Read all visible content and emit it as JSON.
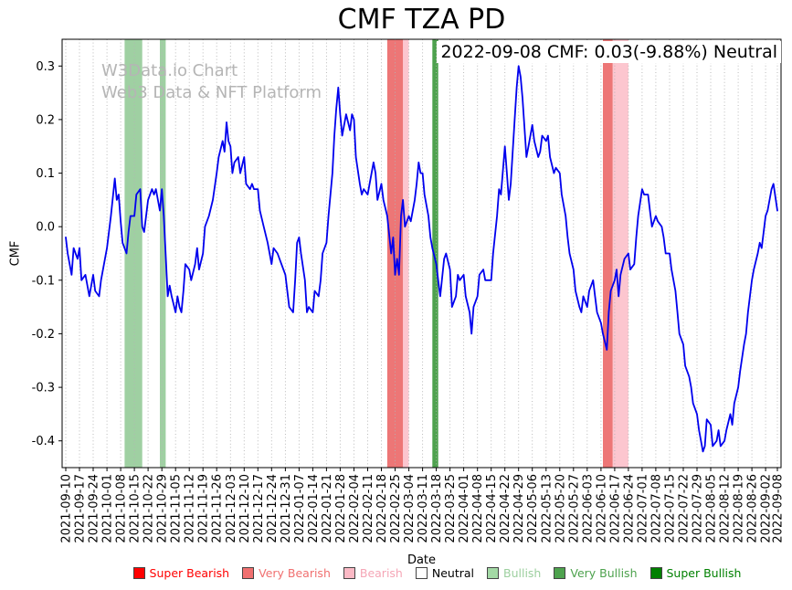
{
  "title": "CMF TZA PD",
  "annotation": "2022-09-08 CMF: 0.03(-9.88%) Neutral",
  "watermark": {
    "line1": "W3Data.io Chart",
    "line2": "Web3 Data & NFT Platform"
  },
  "axes": {
    "x_label": "Date",
    "y_label": "CMF"
  },
  "legend": [
    {
      "label": "Super Bearish",
      "color": "#ff0000",
      "text_color": "#ff0000"
    },
    {
      "label": "Very Bearish",
      "color": "#f07070",
      "text_color": "#f07070"
    },
    {
      "label": "Bearish",
      "color": "#fbb9c5",
      "text_color": "#f5a6b6"
    },
    {
      "label": "Neutral",
      "color": "#ffffff",
      "text_color": "#000000"
    },
    {
      "label": "Bullish",
      "color": "#a3d9a5",
      "text_color": "#9ccf9e"
    },
    {
      "label": "Very Bullish",
      "color": "#4ea24e",
      "text_color": "#4ea24e"
    },
    {
      "label": "Super Bullish",
      "color": "#008000",
      "text_color": "#008000"
    }
  ],
  "chart_data": {
    "type": "line",
    "title": "CMF TZA PD",
    "xlabel": "Date",
    "ylabel": "CMF",
    "ylim": [
      -0.45,
      0.35
    ],
    "y_ticks": [
      0.3,
      0.2,
      0.1,
      0.0,
      -0.1,
      -0.2,
      -0.3,
      -0.4
    ],
    "line_color": "#0000ee",
    "grid": "vertical-dotted",
    "x_start_date": "2021-09-10",
    "x_max": 363,
    "x_tick_days": [
      0,
      7,
      14,
      21,
      28,
      35,
      42,
      49,
      56,
      63,
      70,
      77,
      84,
      91,
      98,
      105,
      112,
      119,
      126,
      133,
      140,
      147,
      154,
      161,
      168,
      175,
      182,
      189,
      196,
      203,
      210,
      217,
      224,
      231,
      238,
      245,
      252,
      259,
      266,
      273,
      280,
      287,
      294,
      301,
      308,
      315,
      322,
      329,
      336,
      343,
      350,
      357,
      363
    ],
    "x_tick_labels": [
      "2021-09-10",
      "2021-09-17",
      "2021-09-24",
      "2021-10-01",
      "2021-10-08",
      "2021-10-15",
      "2021-10-22",
      "2021-10-29",
      "2021-11-05",
      "2021-11-12",
      "2021-11-19",
      "2021-11-26",
      "2021-12-03",
      "2021-12-10",
      "2021-12-17",
      "2021-12-24",
      "2021-12-31",
      "2022-01-07",
      "2022-01-14",
      "2022-01-21",
      "2022-01-28",
      "2022-02-04",
      "2022-02-11",
      "2022-02-18",
      "2022-02-25",
      "2022-03-04",
      "2022-03-11",
      "2022-03-18",
      "2022-03-25",
      "2022-04-01",
      "2022-04-08",
      "2022-04-15",
      "2022-04-22",
      "2022-04-29",
      "2022-05-06",
      "2022-05-13",
      "2022-05-20",
      "2022-05-27",
      "2022-06-03",
      "2022-06-10",
      "2022-06-17",
      "2022-06-24",
      "2022-07-01",
      "2022-07-08",
      "2022-07-15",
      "2022-07-22",
      "2022-07-29",
      "2022-08-05",
      "2022-08-12",
      "2022-08-19",
      "2022-08-26",
      "2022-09-02",
      "2022-09-08"
    ],
    "band_colors": {
      "Bullish": "rgba(80,170,85,0.55)",
      "Very Bullish": "rgba(34,139,34,0.8)",
      "Bearish": "rgba(250,160,175,0.6)",
      "Very Bearish": "rgba(230,60,60,0.7)"
    },
    "bands": [
      {
        "from_day": 30,
        "to_day": 39,
        "category": "Bullish"
      },
      {
        "from_day": 48,
        "to_day": 51,
        "category": "Bullish"
      },
      {
        "from_day": 164,
        "to_day": 172,
        "category": "Very Bearish"
      },
      {
        "from_day": 172,
        "to_day": 175,
        "category": "Bearish"
      },
      {
        "from_day": 187,
        "to_day": 190,
        "category": "Very Bullish"
      },
      {
        "from_day": 274,
        "to_day": 279,
        "category": "Very Bearish"
      },
      {
        "from_day": 279,
        "to_day": 287,
        "category": "Bearish"
      }
    ],
    "points": [
      [
        0,
        -0.02
      ],
      [
        1,
        -0.05
      ],
      [
        3,
        -0.09
      ],
      [
        4,
        -0.04
      ],
      [
        6,
        -0.06
      ],
      [
        7,
        -0.04
      ],
      [
        8,
        -0.1
      ],
      [
        10,
        -0.09
      ],
      [
        12,
        -0.13
      ],
      [
        14,
        -0.09
      ],
      [
        15,
        -0.12
      ],
      [
        17,
        -0.13
      ],
      [
        18,
        -0.1
      ],
      [
        20,
        -0.06
      ],
      [
        21,
        -0.04
      ],
      [
        23,
        0.02
      ],
      [
        25,
        0.09
      ],
      [
        26,
        0.05
      ],
      [
        27,
        0.06
      ],
      [
        28,
        0.01
      ],
      [
        29,
        -0.03
      ],
      [
        31,
        -0.05
      ],
      [
        32,
        -0.01
      ],
      [
        33,
        0.02
      ],
      [
        35,
        0.02
      ],
      [
        36,
        0.06
      ],
      [
        38,
        0.07
      ],
      [
        39,
        0.0
      ],
      [
        40,
        -0.01
      ],
      [
        42,
        0.05
      ],
      [
        44,
        0.07
      ],
      [
        45,
        0.06
      ],
      [
        46,
        0.07
      ],
      [
        48,
        0.03
      ],
      [
        49,
        0.07
      ],
      [
        50,
        0.02
      ],
      [
        52,
        -0.13
      ],
      [
        53,
        -0.11
      ],
      [
        54,
        -0.13
      ],
      [
        56,
        -0.16
      ],
      [
        57,
        -0.13
      ],
      [
        58,
        -0.15
      ],
      [
        59,
        -0.16
      ],
      [
        60,
        -0.12
      ],
      [
        61,
        -0.07
      ],
      [
        63,
        -0.08
      ],
      [
        64,
        -0.1
      ],
      [
        66,
        -0.07
      ],
      [
        67,
        -0.04
      ],
      [
        68,
        -0.08
      ],
      [
        70,
        -0.05
      ],
      [
        71,
        0.0
      ],
      [
        73,
        0.02
      ],
      [
        75,
        0.05
      ],
      [
        77,
        0.1
      ],
      [
        78,
        0.13
      ],
      [
        80,
        0.16
      ],
      [
        81,
        0.14
      ],
      [
        82,
        0.195
      ],
      [
        83,
        0.16
      ],
      [
        84,
        0.15
      ],
      [
        85,
        0.1
      ],
      [
        86,
        0.12
      ],
      [
        88,
        0.13
      ],
      [
        89,
        0.1
      ],
      [
        91,
        0.13
      ],
      [
        92,
        0.08
      ],
      [
        94,
        0.07
      ],
      [
        95,
        0.08
      ],
      [
        96,
        0.07
      ],
      [
        98,
        0.07
      ],
      [
        99,
        0.03
      ],
      [
        101,
        0.0
      ],
      [
        103,
        -0.03
      ],
      [
        105,
        -0.07
      ],
      [
        106,
        -0.04
      ],
      [
        108,
        -0.05
      ],
      [
        110,
        -0.07
      ],
      [
        112,
        -0.09
      ],
      [
        113,
        -0.12
      ],
      [
        114,
        -0.15
      ],
      [
        116,
        -0.16
      ],
      [
        117,
        -0.1
      ],
      [
        118,
        -0.03
      ],
      [
        119,
        -0.02
      ],
      [
        120,
        -0.05
      ],
      [
        122,
        -0.1
      ],
      [
        123,
        -0.16
      ],
      [
        124,
        -0.15
      ],
      [
        126,
        -0.16
      ],
      [
        127,
        -0.12
      ],
      [
        129,
        -0.13
      ],
      [
        130,
        -0.1
      ],
      [
        131,
        -0.05
      ],
      [
        133,
        -0.03
      ],
      [
        134,
        0.02
      ],
      [
        136,
        0.1
      ],
      [
        137,
        0.17
      ],
      [
        138,
        0.22
      ],
      [
        139,
        0.26
      ],
      [
        140,
        0.21
      ],
      [
        141,
        0.17
      ],
      [
        143,
        0.21
      ],
      [
        145,
        0.18
      ],
      [
        146,
        0.21
      ],
      [
        147,
        0.2
      ],
      [
        148,
        0.13
      ],
      [
        150,
        0.08
      ],
      [
        151,
        0.06
      ],
      [
        152,
        0.07
      ],
      [
        154,
        0.06
      ],
      [
        155,
        0.08
      ],
      [
        157,
        0.12
      ],
      [
        158,
        0.1
      ],
      [
        159,
        0.05
      ],
      [
        161,
        0.08
      ],
      [
        162,
        0.05
      ],
      [
        164,
        0.02
      ],
      [
        166,
        -0.05
      ],
      [
        167,
        -0.02
      ],
      [
        168,
        -0.09
      ],
      [
        169,
        -0.06
      ],
      [
        170,
        -0.09
      ],
      [
        171,
        0.02
      ],
      [
        172,
        0.05
      ],
      [
        173,
        0.0
      ],
      [
        175,
        0.02
      ],
      [
        176,
        0.01
      ],
      [
        178,
        0.05
      ],
      [
        179,
        0.08
      ],
      [
        180,
        0.12
      ],
      [
        181,
        0.1
      ],
      [
        182,
        0.1
      ],
      [
        183,
        0.06
      ],
      [
        185,
        0.02
      ],
      [
        186,
        -0.02
      ],
      [
        187,
        -0.04
      ],
      [
        189,
        -0.07
      ],
      [
        190,
        -0.1
      ],
      [
        191,
        -0.13
      ],
      [
        193,
        -0.06
      ],
      [
        194,
        -0.05
      ],
      [
        196,
        -0.08
      ],
      [
        197,
        -0.15
      ],
      [
        199,
        -0.13
      ],
      [
        200,
        -0.09
      ],
      [
        201,
        -0.1
      ],
      [
        203,
        -0.09
      ],
      [
        204,
        -0.13
      ],
      [
        206,
        -0.16
      ],
      [
        207,
        -0.2
      ],
      [
        208,
        -0.15
      ],
      [
        210,
        -0.13
      ],
      [
        211,
        -0.09
      ],
      [
        213,
        -0.08
      ],
      [
        214,
        -0.1
      ],
      [
        216,
        -0.1
      ],
      [
        217,
        -0.1
      ],
      [
        218,
        -0.05
      ],
      [
        220,
        0.02
      ],
      [
        221,
        0.07
      ],
      [
        222,
        0.06
      ],
      [
        224,
        0.15
      ],
      [
        225,
        0.1
      ],
      [
        226,
        0.05
      ],
      [
        227,
        0.08
      ],
      [
        229,
        0.2
      ],
      [
        230,
        0.26
      ],
      [
        231,
        0.3
      ],
      [
        232,
        0.28
      ],
      [
        233,
        0.24
      ],
      [
        235,
        0.13
      ],
      [
        236,
        0.15
      ],
      [
        238,
        0.19
      ],
      [
        239,
        0.16
      ],
      [
        241,
        0.13
      ],
      [
        242,
        0.14
      ],
      [
        243,
        0.17
      ],
      [
        245,
        0.16
      ],
      [
        246,
        0.17
      ],
      [
        247,
        0.13
      ],
      [
        249,
        0.1
      ],
      [
        250,
        0.11
      ],
      [
        252,
        0.1
      ],
      [
        253,
        0.06
      ],
      [
        255,
        0.02
      ],
      [
        256,
        -0.02
      ],
      [
        257,
        -0.05
      ],
      [
        259,
        -0.08
      ],
      [
        260,
        -0.12
      ],
      [
        262,
        -0.15
      ],
      [
        263,
        -0.16
      ],
      [
        264,
        -0.13
      ],
      [
        266,
        -0.15
      ],
      [
        267,
        -0.12
      ],
      [
        269,
        -0.1
      ],
      [
        270,
        -0.13
      ],
      [
        271,
        -0.16
      ],
      [
        273,
        -0.18
      ],
      [
        274,
        -0.2
      ],
      [
        276,
        -0.23
      ],
      [
        277,
        -0.16
      ],
      [
        278,
        -0.12
      ],
      [
        280,
        -0.1
      ],
      [
        281,
        -0.08
      ],
      [
        282,
        -0.13
      ],
      [
        283,
        -0.09
      ],
      [
        285,
        -0.06
      ],
      [
        287,
        -0.05
      ],
      [
        288,
        -0.08
      ],
      [
        290,
        -0.07
      ],
      [
        291,
        -0.02
      ],
      [
        292,
        0.02
      ],
      [
        294,
        0.07
      ],
      [
        295,
        0.06
      ],
      [
        297,
        0.06
      ],
      [
        298,
        0.03
      ],
      [
        299,
        0.0
      ],
      [
        301,
        0.02
      ],
      [
        302,
        0.01
      ],
      [
        304,
        0.0
      ],
      [
        305,
        -0.02
      ],
      [
        306,
        -0.05
      ],
      [
        308,
        -0.05
      ],
      [
        309,
        -0.08
      ],
      [
        311,
        -0.12
      ],
      [
        312,
        -0.16
      ],
      [
        313,
        -0.2
      ],
      [
        315,
        -0.22
      ],
      [
        316,
        -0.26
      ],
      [
        318,
        -0.28
      ],
      [
        319,
        -0.3
      ],
      [
        320,
        -0.33
      ],
      [
        322,
        -0.35
      ],
      [
        323,
        -0.38
      ],
      [
        325,
        -0.42
      ],
      [
        326,
        -0.41
      ],
      [
        327,
        -0.36
      ],
      [
        329,
        -0.37
      ],
      [
        330,
        -0.41
      ],
      [
        332,
        -0.4
      ],
      [
        333,
        -0.38
      ],
      [
        334,
        -0.41
      ],
      [
        336,
        -0.4
      ],
      [
        337,
        -0.38
      ],
      [
        339,
        -0.35
      ],
      [
        340,
        -0.37
      ],
      [
        341,
        -0.33
      ],
      [
        343,
        -0.3
      ],
      [
        344,
        -0.27
      ],
      [
        346,
        -0.22
      ],
      [
        347,
        -0.2
      ],
      [
        348,
        -0.16
      ],
      [
        350,
        -0.1
      ],
      [
        351,
        -0.08
      ],
      [
        353,
        -0.05
      ],
      [
        354,
        -0.03
      ],
      [
        355,
        -0.04
      ],
      [
        357,
        0.02
      ],
      [
        358,
        0.03
      ],
      [
        360,
        0.07
      ],
      [
        361,
        0.08
      ],
      [
        363,
        0.03
      ]
    ]
  }
}
